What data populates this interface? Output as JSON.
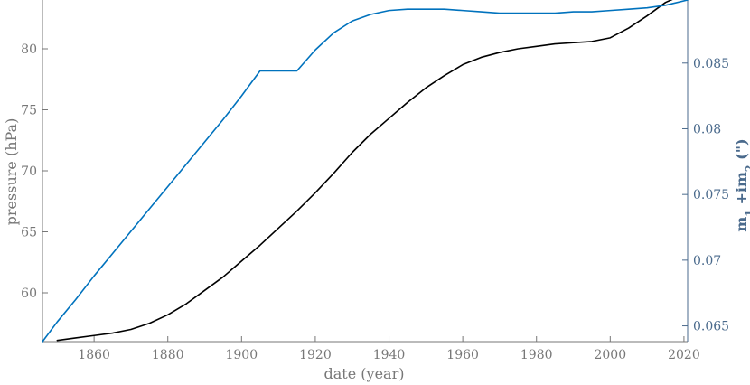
{
  "chart_data": {
    "type": "line",
    "xlabel": "date (year)",
    "ylabel_left": "pressure (hPa)",
    "ylabel_right_parts": {
      "base1": "m",
      "sub1": "1",
      "mid": " +im",
      "sub2": "2",
      "unit": " (\")"
    },
    "x_ticks": [
      1860,
      1880,
      1900,
      1920,
      1940,
      1960,
      1980,
      2000,
      2020
    ],
    "y_left_ticks": [
      60,
      65,
      70,
      75,
      80
    ],
    "y_right_ticks": [
      "0.065",
      "0.07",
      "0.075",
      "0.08",
      "0.085"
    ],
    "xlim": [
      1846,
      2021
    ],
    "ylim_left": [
      56.0,
      84.0
    ],
    "ylim_right": [
      0.0638,
      0.0898
    ],
    "grid": false,
    "colors": {
      "pressure": "#000000",
      "m1_im2": "#0072bd",
      "left_axis": "#777777",
      "right_axis": "#4a6a8c"
    },
    "series": [
      {
        "axis": "left",
        "color": "#000000",
        "x": [
          1850,
          1855,
          1860,
          1865,
          1870,
          1875,
          1880,
          1885,
          1890,
          1895,
          1900,
          1905,
          1910,
          1915,
          1920,
          1925,
          1930,
          1935,
          1940,
          1945,
          1950,
          1955,
          1960,
          1965,
          1970,
          1975,
          1980,
          1985,
          1990,
          1995,
          2000,
          2005,
          2010,
          2015,
          2018
        ],
        "y": [
          56.1,
          56.3,
          56.5,
          56.7,
          57.0,
          57.5,
          58.2,
          59.1,
          60.2,
          61.3,
          62.6,
          63.9,
          65.3,
          66.7,
          68.2,
          69.8,
          71.5,
          73.0,
          74.3,
          75.6,
          76.8,
          77.8,
          78.7,
          79.3,
          79.7,
          80.0,
          80.2,
          80.4,
          80.5,
          80.6,
          80.9,
          81.7,
          82.7,
          83.8,
          84.2
        ]
      },
      {
        "axis": "right",
        "color": "#0072bd",
        "x": [
          1846,
          1850,
          1855,
          1860,
          1865,
          1870,
          1875,
          1880,
          1885,
          1890,
          1895,
          1900,
          1905,
          1910,
          1915,
          1920,
          1925,
          1930,
          1935,
          1940,
          1945,
          1950,
          1955,
          1960,
          1965,
          1970,
          1975,
          1980,
          1985,
          1990,
          1995,
          2000,
          2005,
          2010,
          2015,
          2021
        ],
        "y": [
          0.0638,
          0.0653,
          0.067,
          0.0688,
          0.0705,
          0.0722,
          0.0739,
          0.0756,
          0.0773,
          0.079,
          0.0807,
          0.0825,
          0.0844,
          0.0844,
          0.0844,
          0.086,
          0.0873,
          0.0882,
          0.0887,
          0.089,
          0.0891,
          0.0891,
          0.0891,
          0.089,
          0.0889,
          0.0888,
          0.0888,
          0.0888,
          0.0888,
          0.0889,
          0.0889,
          0.089,
          0.0891,
          0.0892,
          0.0894,
          0.0898
        ]
      }
    ]
  }
}
